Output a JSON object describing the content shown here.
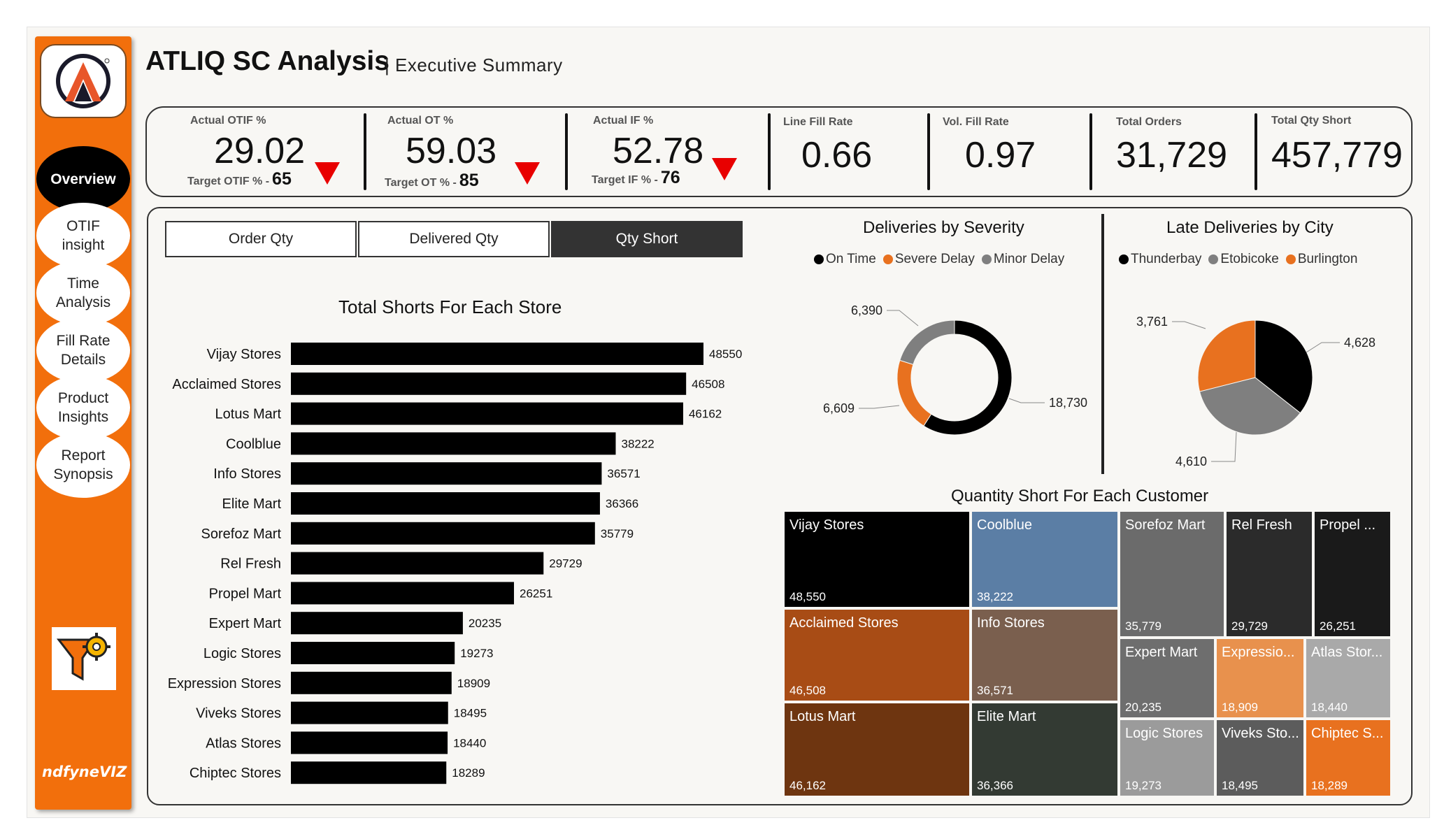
{
  "app": {
    "title": "ATLIQ SC Analysis",
    "subtitle": "| Executive Summary",
    "brand": "ndfyneVIZ"
  },
  "sidebar": {
    "items": [
      {
        "label": "Overview",
        "active": true
      },
      {
        "label": "OTIF\ninsight",
        "active": false
      },
      {
        "label": "Time\nAnalysis",
        "active": false
      },
      {
        "label": "Fill Rate\nDetails",
        "active": false
      },
      {
        "label": "Product\nInsights",
        "active": false
      },
      {
        "label": "Report\nSynopsis",
        "active": false
      }
    ],
    "filter_icon": "filter-gear-icon"
  },
  "kpis": [
    {
      "label": "Actual OTIF %",
      "value": "29.02",
      "target_label": "Target OTIF % -",
      "target": "65",
      "trend": "down"
    },
    {
      "label": "Actual OT %",
      "value": "59.03",
      "target_label": "Target OT % -",
      "target": "85",
      "trend": "down"
    },
    {
      "label": "Actual IF %",
      "value": "52.78",
      "target_label": "Target IF % -",
      "target": "76",
      "trend": "down"
    },
    {
      "label": "Line Fill Rate",
      "value": "0.66"
    },
    {
      "label": "Vol. Fill Rate",
      "value": "0.97"
    },
    {
      "label": "Total Orders",
      "value": "31,729"
    },
    {
      "label": "Total Qty Short",
      "value": "457,779"
    }
  ],
  "toggles": [
    {
      "label": "Order Qty",
      "active": false
    },
    {
      "label": "Delivered Qty",
      "active": false
    },
    {
      "label": "Qty Short",
      "active": true
    }
  ],
  "colors": {
    "accent": "#f26f0c",
    "bar": "#000000",
    "down": "#e80000"
  },
  "chart_data": [
    {
      "type": "bar",
      "orientation": "horizontal",
      "title": "Total Shorts For Each Store",
      "categories": [
        "Vijay Stores",
        "Acclaimed Stores",
        "Lotus Mart",
        "Coolblue",
        "Info Stores",
        "Elite Mart",
        "Sorefoz Mart",
        "Rel Fresh",
        "Propel Mart",
        "Expert Mart",
        "Logic Stores",
        "Expression Stores",
        "Viveks Stores",
        "Atlas Stores",
        "Chiptec Stores"
      ],
      "values": [
        48550,
        46508,
        46162,
        38222,
        36571,
        36366,
        35779,
        29729,
        26251,
        20235,
        19273,
        18909,
        18495,
        18440,
        18289
      ],
      "labels": [
        "48550",
        "46508",
        "46162",
        "38222",
        "36571",
        "36366",
        "35779",
        "29729",
        "26251",
        "20235",
        "19273",
        "18909",
        "18495",
        "18440",
        "18289"
      ]
    },
    {
      "type": "pie",
      "donut": true,
      "title": "Deliveries by Severity",
      "series": [
        {
          "name": "On Time",
          "value": 18730,
          "label": "18,730",
          "color": "#000000"
        },
        {
          "name": "Severe Delay",
          "value": 6609,
          "label": "6,609",
          "color": "#e8711f"
        },
        {
          "name": "Minor Delay",
          "value": 6390,
          "label": "6,390",
          "color": "#7f7f7f"
        }
      ],
      "legend": "top"
    },
    {
      "type": "pie",
      "title": "Late Deliveries by City",
      "series": [
        {
          "name": "Thunderbay",
          "value": 4628,
          "label": "4,628",
          "color": "#000000"
        },
        {
          "name": "Etobicoke",
          "value": 4610,
          "label": "4,610",
          "color": "#7f7f7f"
        },
        {
          "name": "Burlington",
          "value": 3761,
          "label": "3,761",
          "color": "#e8711f"
        }
      ],
      "legend": "top"
    },
    {
      "type": "treemap",
      "title": "Quantity Short For Each Customer",
      "items": [
        {
          "name": "Vijay Stores",
          "value": "48,550",
          "color": "#000000"
        },
        {
          "name": "Acclaimed Stores",
          "value": "46,508",
          "color": "#a84c15"
        },
        {
          "name": "Lotus Mart",
          "value": "46,162",
          "color": "#6e3510"
        },
        {
          "name": "Coolblue",
          "value": "38,222",
          "color": "#5b7ea5"
        },
        {
          "name": "Info Stores",
          "value": "36,571",
          "color": "#7a5f4e"
        },
        {
          "name": "Elite Mart",
          "value": "36,366",
          "color": "#333a33"
        },
        {
          "name": "Sorefoz Mart",
          "value": "35,779",
          "color": "#6b6b6b"
        },
        {
          "name": "Rel Fresh",
          "value": "29,729",
          "color": "#2b2b2b"
        },
        {
          "name": "Propel ...",
          "value": "26,251",
          "color": "#1a1a1a"
        },
        {
          "name": "Expert Mart",
          "value": "20,235",
          "color": "#6e6e6e"
        },
        {
          "name": "Expressio...",
          "value": "18,909",
          "color": "#e8914d"
        },
        {
          "name": "Atlas Stor...",
          "value": "18,440",
          "color": "#a9a9a9"
        },
        {
          "name": "Logic Stores",
          "value": "19,273",
          "color": "#9b9b9b"
        },
        {
          "name": "Viveks Sto...",
          "value": "18,495",
          "color": "#5c5c5c"
        },
        {
          "name": "Chiptec S...",
          "value": "18,289",
          "color": "#e8711f"
        }
      ]
    }
  ]
}
